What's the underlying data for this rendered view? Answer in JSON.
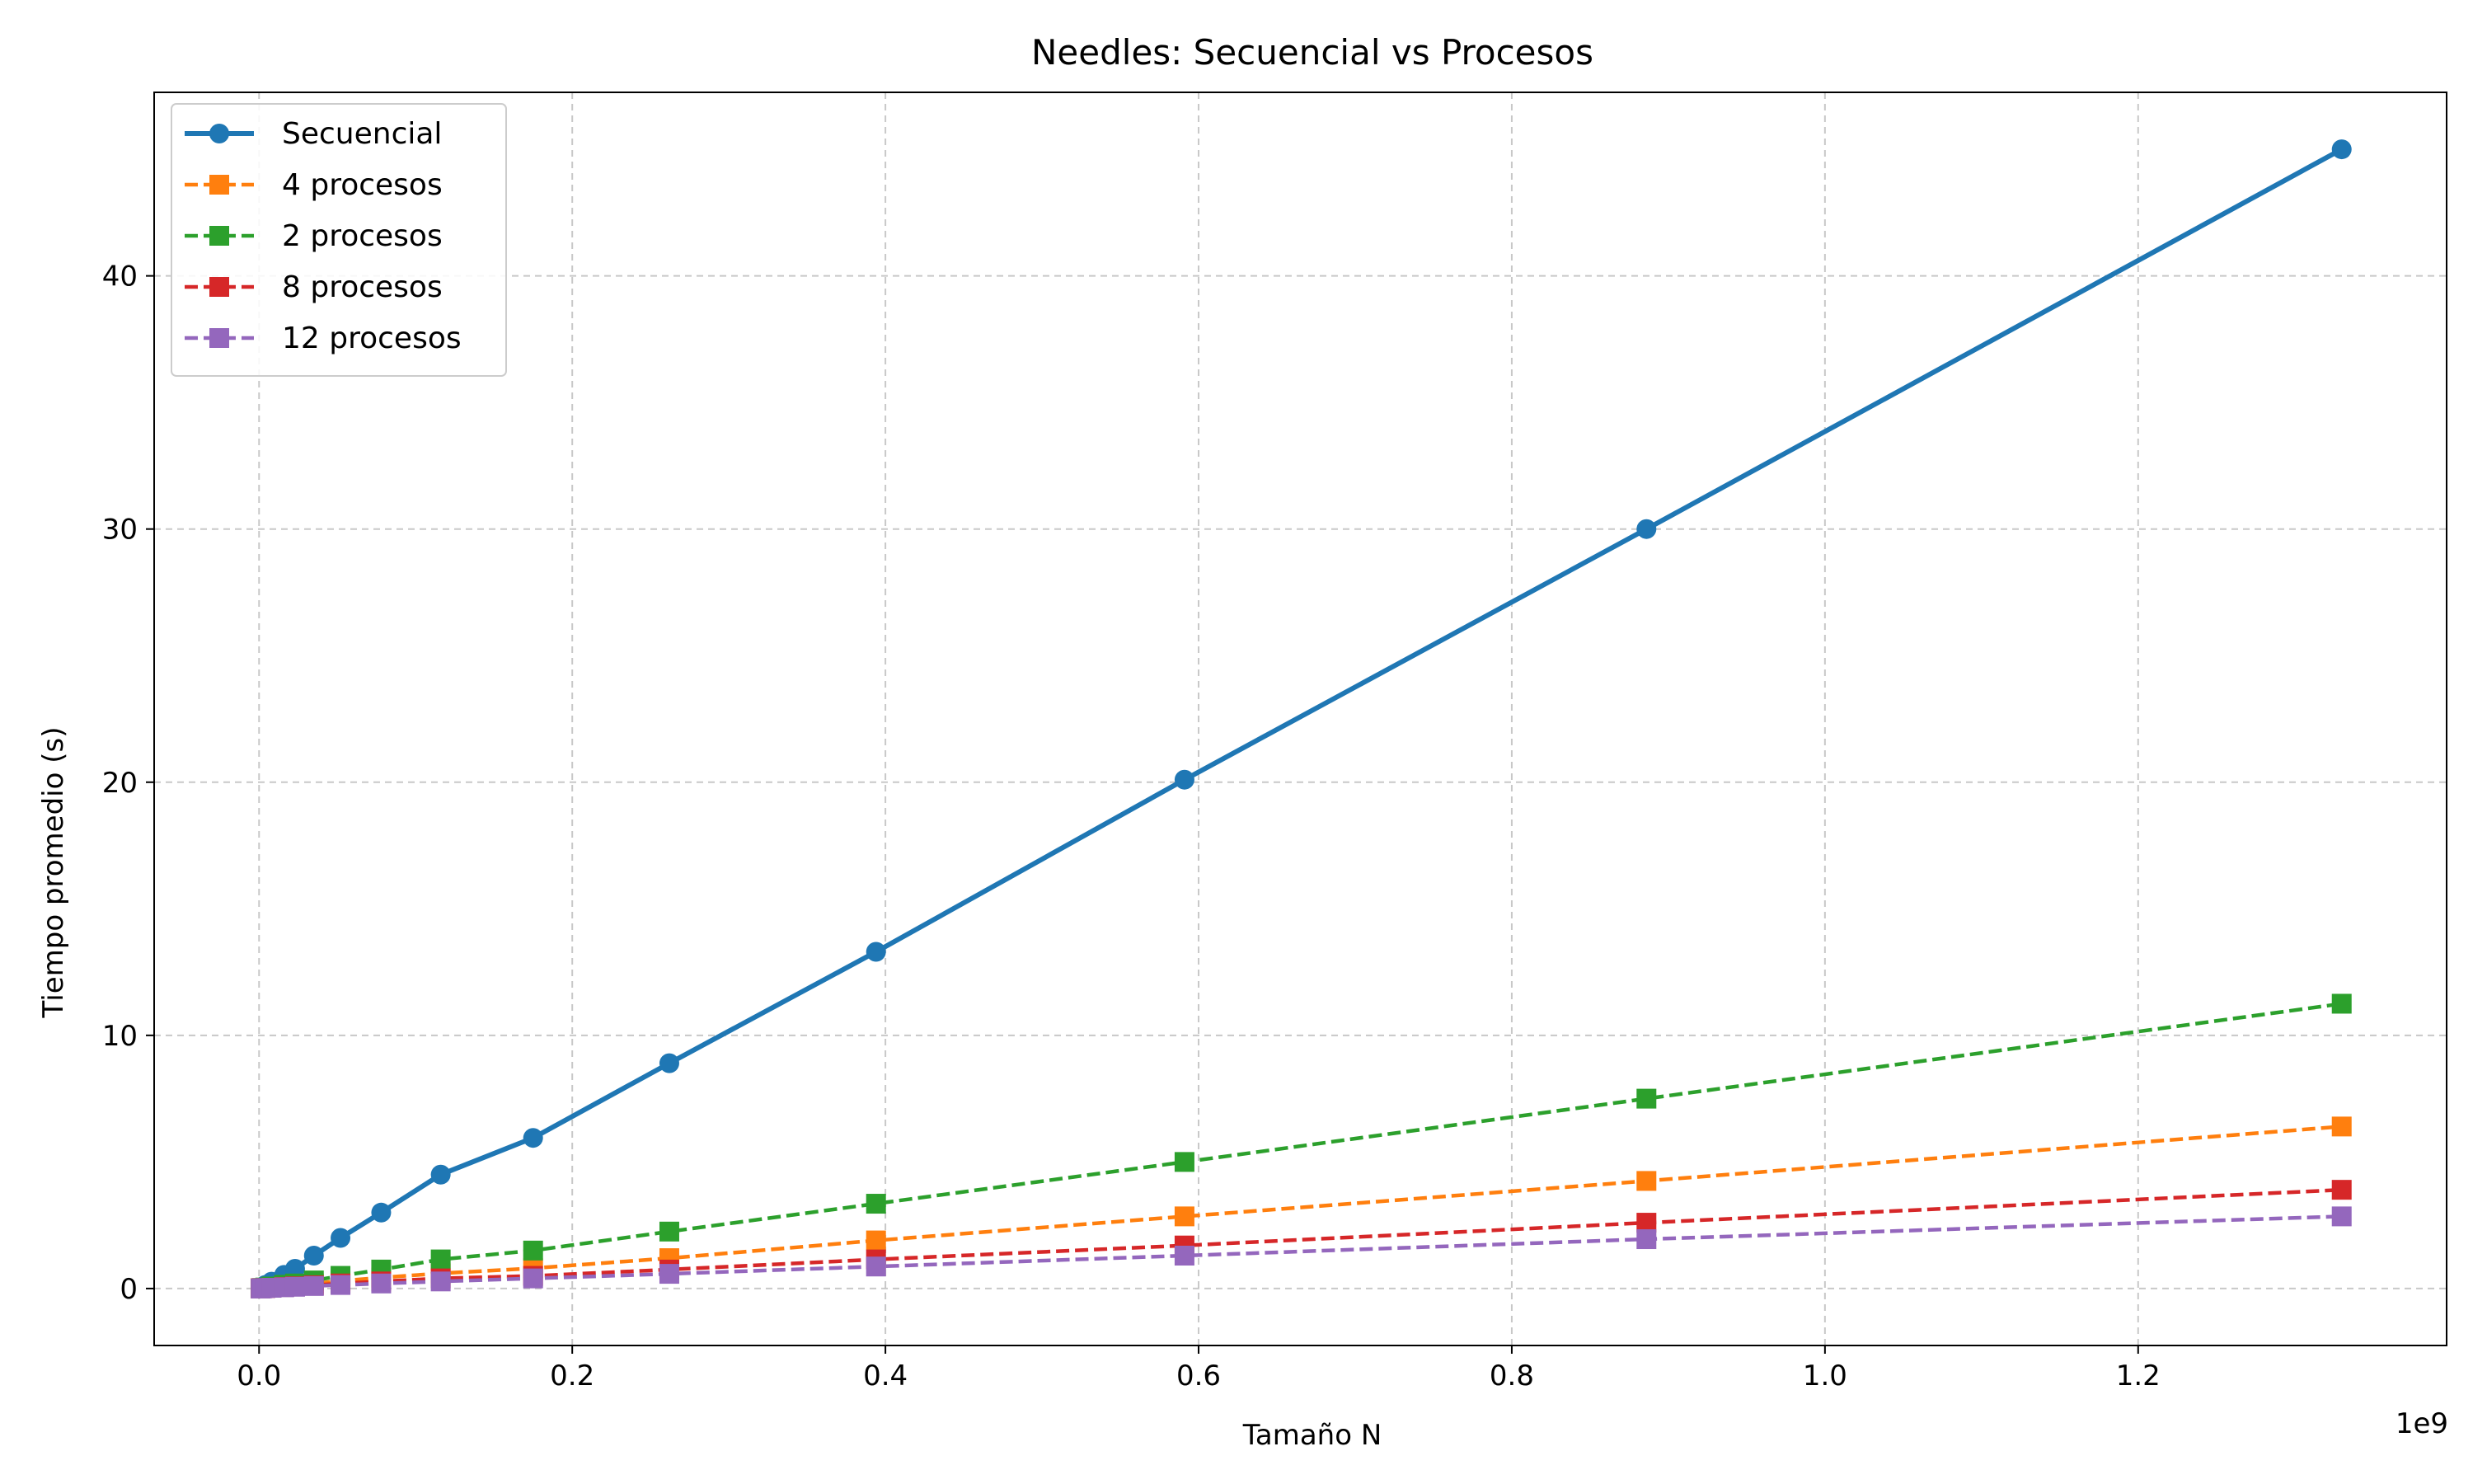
{
  "chart_data": {
    "type": "line",
    "title": "Needles: Secuencial vs Procesos",
    "xlabel": "Tamaño N",
    "ylabel": "Tiempo promedio (s)",
    "x_offset_label": "1e9",
    "x_scale": 1000000000,
    "xlim": [
      -0.067,
      1.397
    ],
    "ylim": [
      -2.25,
      47.25
    ],
    "x_ticks": [
      0.0,
      0.2,
      0.4,
      0.6,
      0.8,
      1.0,
      1.2
    ],
    "x_tick_labels": [
      "0.0",
      "0.2",
      "0.4",
      "0.6",
      "0.8",
      "1.0",
      "1.2"
    ],
    "y_ticks": [
      0,
      10,
      20,
      30,
      40
    ],
    "y_tick_labels": [
      "0",
      "10",
      "20",
      "30",
      "40"
    ],
    "grid": true,
    "legend_placement": "top-left",
    "x": [
      1000000,
      2000000,
      4000000,
      8000000,
      16000000,
      23000000,
      35000000,
      52000000,
      78000000,
      116000000,
      175000000,
      262000000,
      394000000,
      591000000,
      886000000,
      1330000000
    ],
    "series": [
      {
        "name": "Secuencial",
        "color": "#1f77b4",
        "marker": "circle",
        "linestyle": "solid",
        "values": [
          0.03,
          0.06,
          0.14,
          0.27,
          0.54,
          0.78,
          1.3,
          2.0,
          3.0,
          4.5,
          5.95,
          8.9,
          13.3,
          20.1,
          30.0,
          45.0
        ]
      },
      {
        "name": "4 procesos",
        "color": "#ff7f0e",
        "marker": "square",
        "linestyle": "dashed",
        "values": [
          0.01,
          0.02,
          0.03,
          0.05,
          0.1,
          0.13,
          0.2,
          0.3,
          0.43,
          0.6,
          0.8,
          1.2,
          1.9,
          2.85,
          4.25,
          6.4
        ]
      },
      {
        "name": "2 procesos",
        "color": "#2ca02c",
        "marker": "square",
        "linestyle": "dashed",
        "values": [
          0.01,
          0.02,
          0.04,
          0.08,
          0.15,
          0.2,
          0.32,
          0.5,
          0.75,
          1.15,
          1.5,
          2.25,
          3.35,
          5.0,
          7.5,
          11.25
        ]
      },
      {
        "name": "8 procesos",
        "color": "#d62728",
        "marker": "square",
        "linestyle": "dashed",
        "values": [
          0.01,
          0.01,
          0.02,
          0.03,
          0.06,
          0.09,
          0.13,
          0.2,
          0.28,
          0.4,
          0.5,
          0.75,
          1.15,
          1.7,
          2.6,
          3.9
        ]
      },
      {
        "name": "12 procesos",
        "color": "#9467bd",
        "marker": "square",
        "linestyle": "dashed",
        "values": [
          0.0,
          0.01,
          0.02,
          0.03,
          0.05,
          0.07,
          0.1,
          0.14,
          0.2,
          0.28,
          0.4,
          0.58,
          0.87,
          1.3,
          1.95,
          2.85
        ]
      }
    ]
  }
}
